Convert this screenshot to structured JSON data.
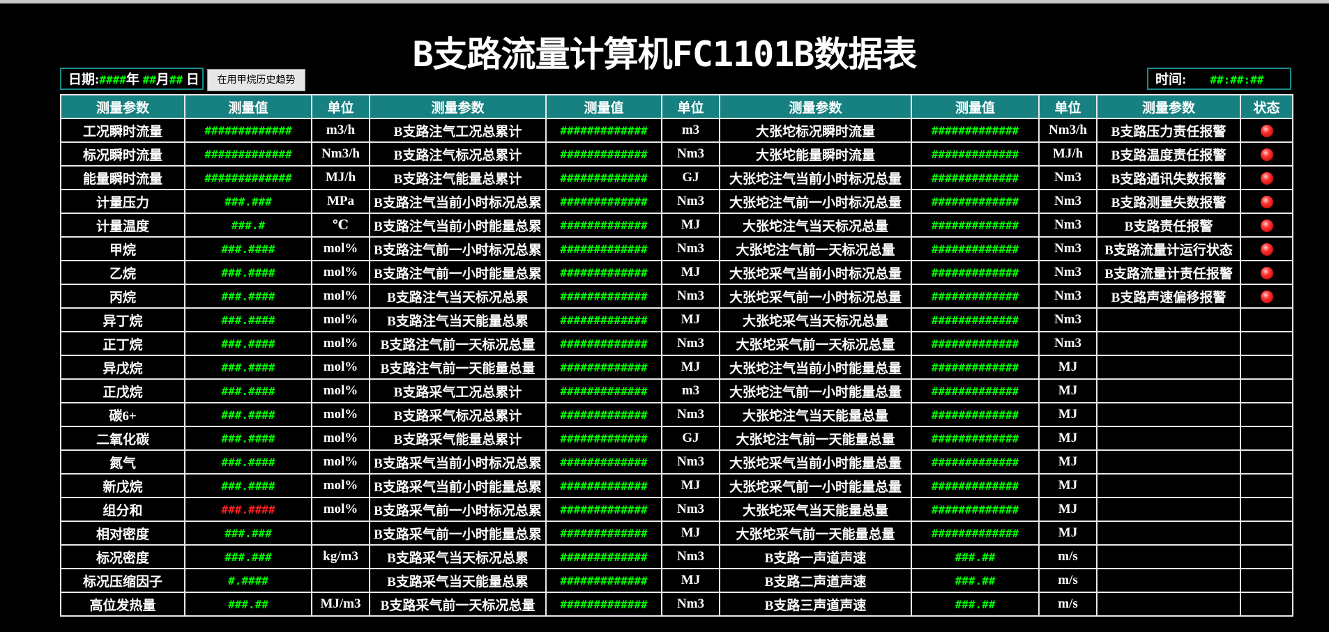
{
  "title": "B支路流量计算机FC1101B数据表",
  "date": {
    "label": "日期:",
    "year": "####",
    "year_unit": "年",
    "month": "##",
    "month_unit": "月",
    "day": "##",
    "day_unit": "日"
  },
  "button": "在用甲烷历史趋势",
  "time": {
    "label": "时间:",
    "value": "##:##:##"
  },
  "table": {
    "headers": [
      "测量参数",
      "测量值",
      "单位",
      "测量参数",
      "测量值",
      "单位",
      "测量参数",
      "测量值",
      "单位",
      "测量参数",
      "状态"
    ],
    "rows": [
      [
        "工况瞬时流量",
        "#############",
        "m3/h",
        "B支路注气工况总累计",
        "#############",
        "m3",
        "大张坨标况瞬时流量",
        "#############",
        "Nm3/h",
        "B支路压力责任报警"
      ],
      [
        "标况瞬时流量",
        "#############",
        "Nm3/h",
        "B支路注气标况总累计",
        "#############",
        "Nm3",
        "大张坨能量瞬时流量",
        "#############",
        "MJ/h",
        "B支路温度责任报警"
      ],
      [
        "能量瞬时流量",
        "#############",
        "MJ/h",
        "B支路注气能量总累计",
        "#############",
        "GJ",
        "大张坨注气当前小时标况总量",
        "#############",
        "Nm3",
        "B支路通讯失数报警"
      ],
      [
        "计量压力",
        "###.###",
        "MPa",
        "B支路注气当前小时标况总累",
        "#############",
        "Nm3",
        "大张坨注气前一小时标况总量",
        "#############",
        "Nm3",
        "B支路测量失数报警"
      ],
      [
        "计量温度",
        "###.#",
        "℃",
        "B支路注气当前小时能量总累",
        "#############",
        "MJ",
        "大张坨注气当天标况总量",
        "#############",
        "Nm3",
        "B支路责任报警"
      ],
      [
        "甲烷",
        "###.####",
        "mol%",
        "B支路注气前一小时标况总累",
        "#############",
        "Nm3",
        "大张坨注气前一天标况总量",
        "#############",
        "Nm3",
        "B支路流量计运行状态"
      ],
      [
        "乙烷",
        "###.####",
        "mol%",
        "B支路注气前一小时能量总累",
        "#############",
        "MJ",
        "大张坨采气当前小时标况总量",
        "#############",
        "Nm3",
        "B支路流量计责任报警"
      ],
      [
        "丙烷",
        "###.####",
        "mol%",
        "B支路注气当天标况总累",
        "#############",
        "Nm3",
        "大张坨采气前一小时标况总量",
        "#############",
        "Nm3",
        "B支路声速偏移报警"
      ],
      [
        "异丁烷",
        "###.####",
        "mol%",
        "B支路注气当天能量总累",
        "#############",
        "MJ",
        "大张坨采气当天标况总量",
        "#############",
        "Nm3",
        null
      ],
      [
        "正丁烷",
        "###.####",
        "mol%",
        "B支路注气前一天标况总量",
        "#############",
        "Nm3",
        "大张坨采气前一天标况总量",
        "#############",
        "Nm3",
        null
      ],
      [
        "异戊烷",
        "###.####",
        "mol%",
        "B支路注气前一天能量总量",
        "#############",
        "MJ",
        "大张坨注气当前小时能量总量",
        "#############",
        "MJ",
        null
      ],
      [
        "正戊烷",
        "###.####",
        "mol%",
        "B支路采气工况总累计",
        "#############",
        "m3",
        "大张坨注气前一小时能量总量",
        "#############",
        "MJ",
        null
      ],
      [
        "碳6+",
        "###.####",
        "mol%",
        "B支路采气标况总累计",
        "#############",
        "Nm3",
        "大张坨注气当天能量总量",
        "#############",
        "MJ",
        null
      ],
      [
        "二氧化碳",
        "###.####",
        "mol%",
        "B支路采气能量总累计",
        "#############",
        "GJ",
        "大张坨注气前一天能量总量",
        "#############",
        "MJ",
        null
      ],
      [
        "氮气",
        "###.####",
        "mol%",
        "B支路采气当前小时标况总累",
        "#############",
        "Nm3",
        "大张坨采气当前小时能量总量",
        "#############",
        "MJ",
        null
      ],
      [
        "新戊烷",
        "###.####",
        "mol%",
        "B支路采气当前小时能量总累",
        "#############",
        "MJ",
        "大张坨采气前一小时能量总量",
        "#############",
        "MJ",
        null
      ],
      [
        "组分和",
        "###.####",
        "mol%",
        "B支路采气前一小时标况总累",
        "#############",
        "Nm3",
        "大张坨采气当天能量总量",
        "#############",
        "MJ",
        null
      ],
      [
        "相对密度",
        "###.###",
        null,
        "B支路采气前一小时能量总累",
        "#############",
        "MJ",
        "大张坨采气前一天能量总量",
        "#############",
        "MJ",
        null
      ],
      [
        "标况密度",
        "###.###",
        "kg/m3",
        "B支路采气当天标况总累",
        "#############",
        "Nm3",
        "B支路一声道声速",
        "###.##",
        "m/s",
        null
      ],
      [
        "标况压缩因子",
        "#.####",
        null,
        "B支路采气当天能量总累",
        "#############",
        "MJ",
        "B支路二声道声速",
        "###.##",
        "m/s",
        null
      ],
      [
        "高位发热量",
        "###.##",
        "MJ/m3",
        "B支路采气前一天标况总量",
        "#############",
        "Nm3",
        "B支路三声道声速",
        "###.##",
        "m/s",
        null
      ]
    ],
    "status": [
      true,
      true,
      true,
      true,
      true,
      true,
      true,
      true,
      false,
      false,
      false,
      false,
      false,
      false,
      false,
      false,
      false,
      false,
      false,
      false,
      false
    ],
    "value_color": "#00ff00",
    "warning_cells": [
      [
        16,
        1
      ]
    ],
    "warning_color": "#ff2020"
  }
}
